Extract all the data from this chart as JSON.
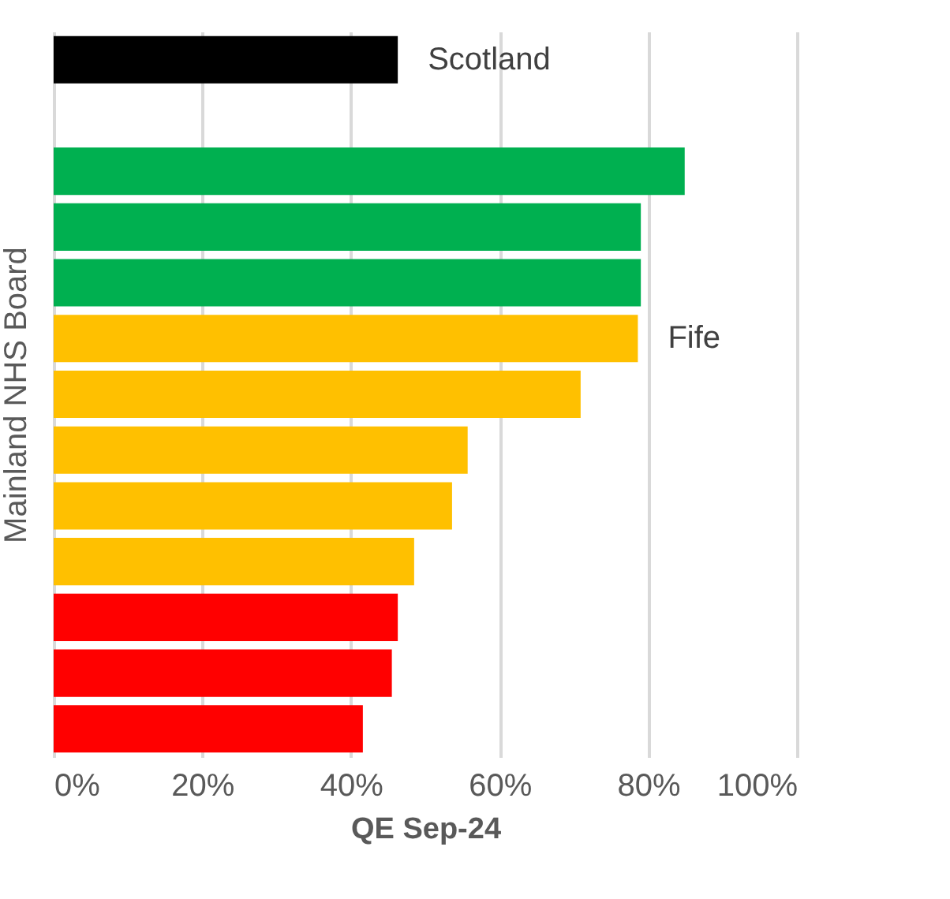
{
  "chart_data": {
    "type": "bar",
    "orientation": "horizontal",
    "xlabel": "QE Sep-24",
    "ylabel": "Mainland NHS Board",
    "categories": [
      null,
      null,
      null,
      null,
      null,
      null,
      null,
      null,
      null,
      null,
      null,
      null,
      null
    ],
    "values": [
      46.3,
      null,
      84.9,
      79.0,
      79.0,
      78.6,
      70.9,
      55.7,
      53.6,
      48.5,
      46.3,
      45.5,
      41.6
    ],
    "colors": [
      "#000000",
      "#000000",
      "#00b050",
      "#00b050",
      "#00b050",
      "#ffc000",
      "#ffc000",
      "#ffc000",
      "#ffc000",
      "#ffc000",
      "#ff0000",
      "#ff0000",
      "#ff0000"
    ],
    "value_labels": [
      "Scotland",
      null,
      null,
      null,
      null,
      "Fife",
      null,
      null,
      null,
      null,
      null,
      null,
      null
    ],
    "xlim": [
      0,
      100
    ],
    "xticks": [
      {
        "value": 0,
        "label": "0%"
      },
      {
        "value": 20,
        "label": "20%"
      },
      {
        "value": 40,
        "label": "40%"
      },
      {
        "value": 60,
        "label": "60%"
      },
      {
        "value": 80,
        "label": "80%"
      },
      {
        "value": 100,
        "label": "100%"
      }
    ],
    "grid": "x",
    "tick_labels": "x"
  }
}
